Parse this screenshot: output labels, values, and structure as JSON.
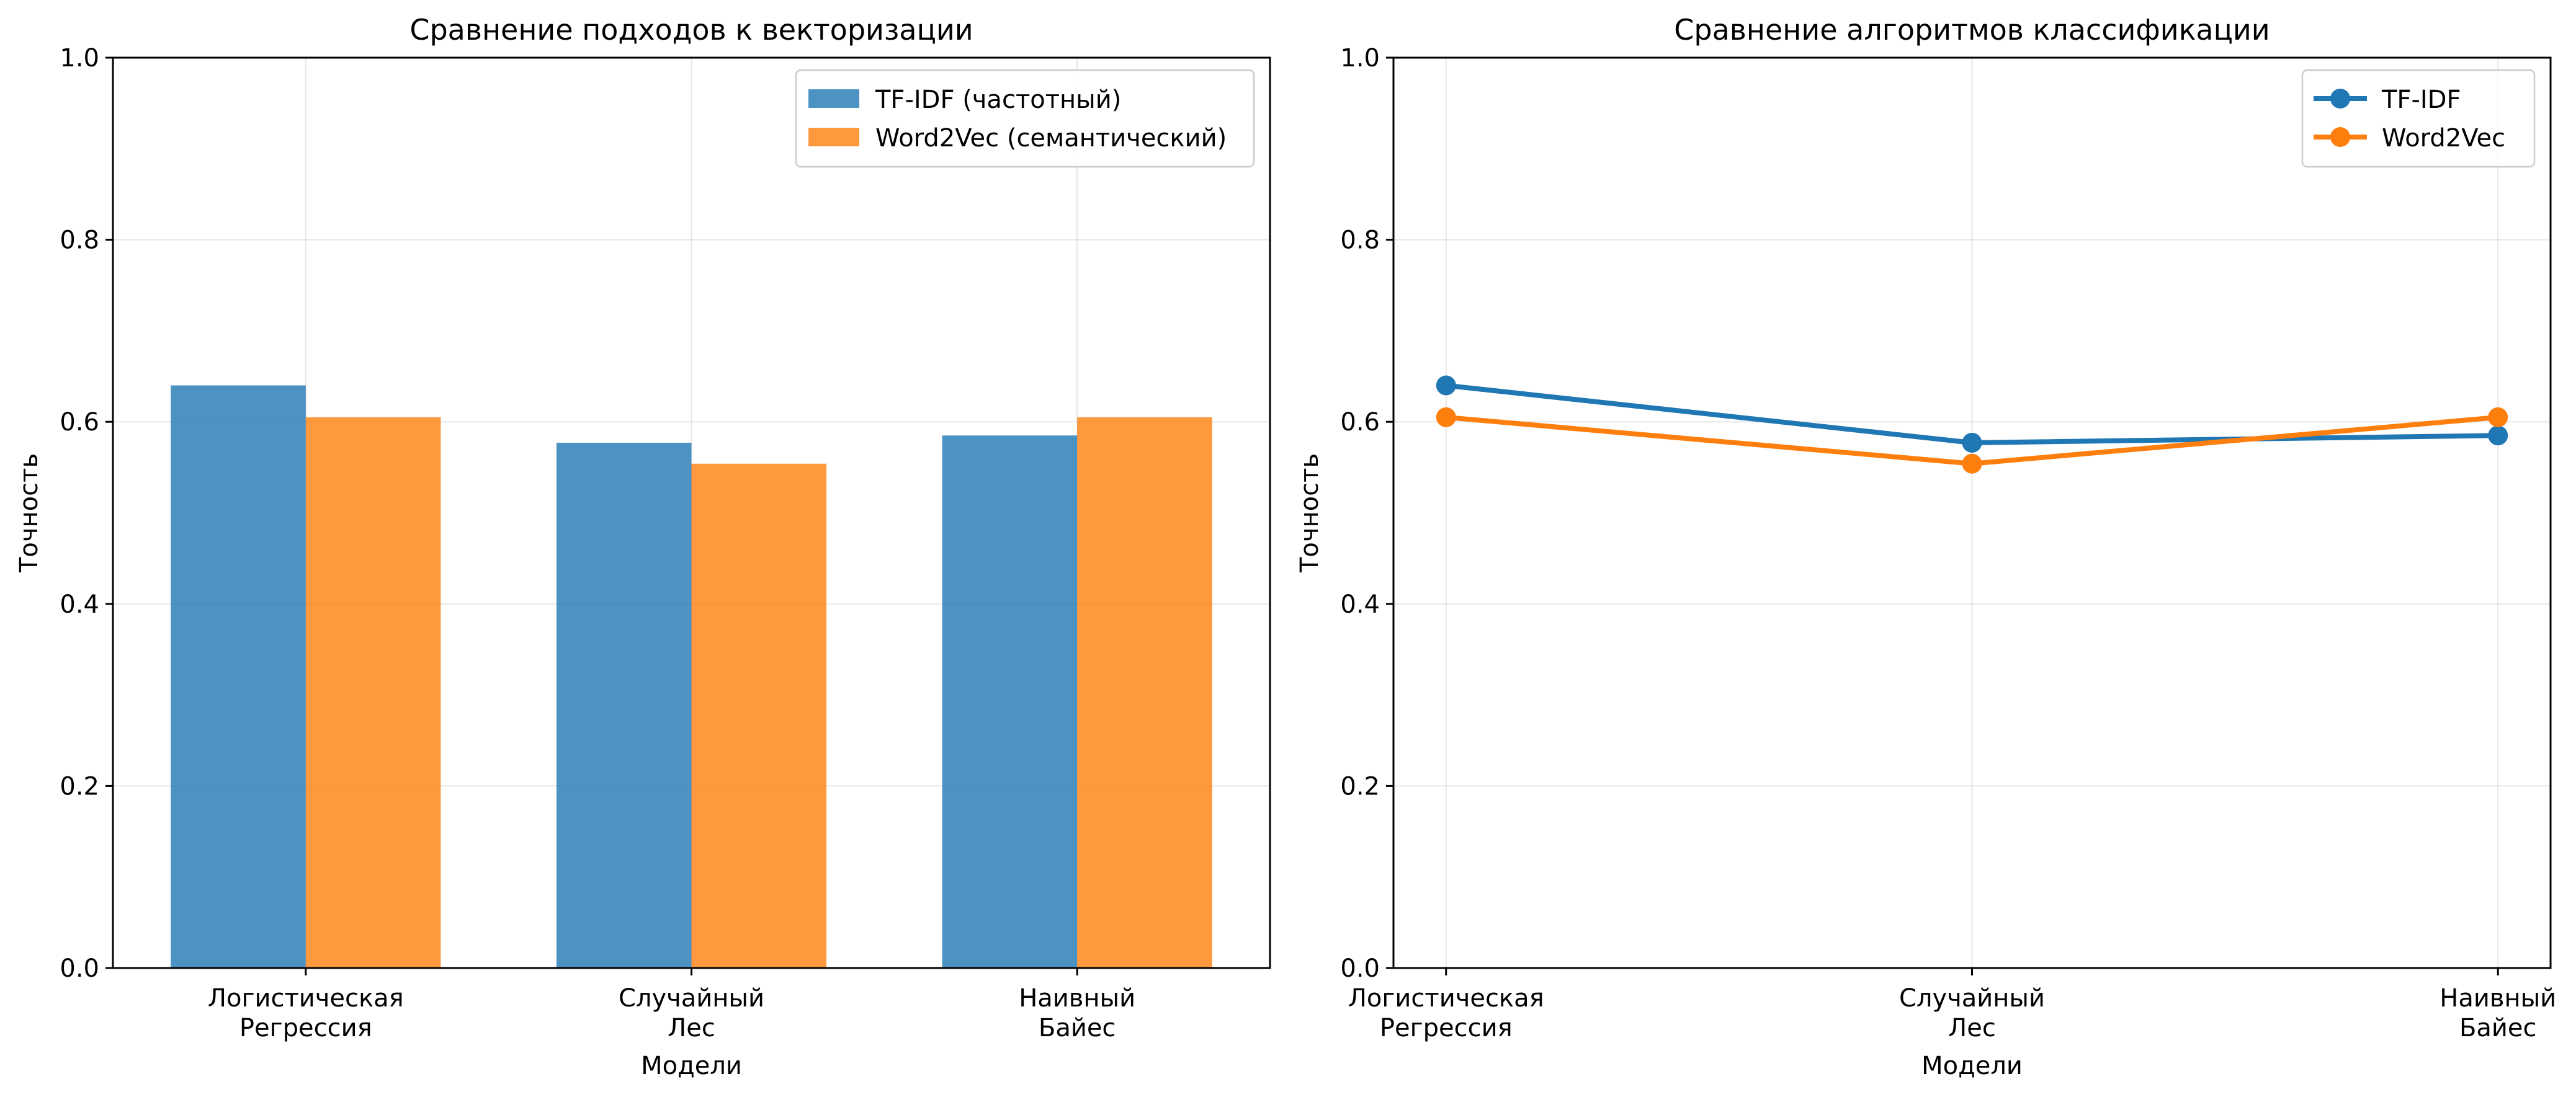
{
  "chart_data": [
    {
      "type": "bar",
      "title": "Сравнение подходов к векторизации",
      "xlabel": "Модели",
      "ylabel": "Точность",
      "ylim": [
        0,
        1.0
      ],
      "yticks": [
        "0.0",
        "0.2",
        "0.4",
        "0.6",
        "0.8",
        "1.0"
      ],
      "categories": [
        [
          "Логистическая",
          "Регрессия"
        ],
        [
          "Случайный",
          "Лес"
        ],
        [
          "Наивный",
          "Байес"
        ]
      ],
      "grid": true,
      "legend_position": "top-right",
      "series": [
        {
          "name": "TF-IDF (частотный)",
          "values": [
            0.64,
            0.577,
            0.585
          ],
          "color": "#1f77b4",
          "opacity": 0.8
        },
        {
          "name": "Word2Vec (семантический)",
          "values": [
            0.605,
            0.554,
            0.605
          ],
          "color": "#ff7f0e",
          "opacity": 0.8
        }
      ]
    },
    {
      "type": "line",
      "title": "Сравнение алгоритмов классификации",
      "xlabel": "Модели",
      "ylabel": "Точность",
      "ylim": [
        0,
        1.0
      ],
      "yticks": [
        "0.0",
        "0.2",
        "0.4",
        "0.6",
        "0.8",
        "1.0"
      ],
      "categories": [
        [
          "Логистическая",
          "Регрессия"
        ],
        [
          "Случайный",
          "Лес"
        ],
        [
          "Наивный",
          "Байес"
        ]
      ],
      "grid": true,
      "legend_position": "top-right",
      "series": [
        {
          "name": "TF-IDF",
          "values": [
            0.64,
            0.577,
            0.585
          ],
          "color": "#1f77b4",
          "marker": "circle"
        },
        {
          "name": "Word2Vec",
          "values": [
            0.605,
            0.554,
            0.605
          ],
          "color": "#ff7f0e",
          "marker": "circle"
        }
      ]
    }
  ]
}
